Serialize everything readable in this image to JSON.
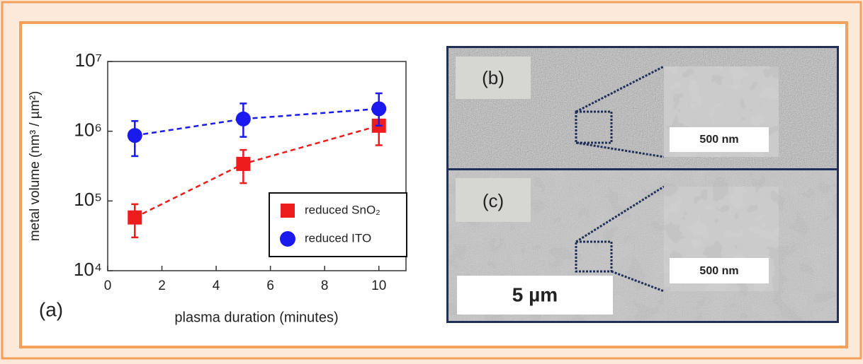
{
  "chart_data": {
    "type": "scatter",
    "panel_label": "(a)",
    "x_label": "plasma duration (minutes)",
    "y_label": "metal volume (nm³ / µm²)",
    "xlim": [
      0,
      11
    ],
    "xticks": [
      0,
      2,
      4,
      6,
      8,
      10
    ],
    "ylim": [
      10000,
      10000000
    ],
    "yticks": [
      {
        "value": 10000,
        "label": "10⁴"
      },
      {
        "value": 100000,
        "label": "10⁵"
      },
      {
        "value": 1000000,
        "label": "10⁶"
      },
      {
        "value": 10000000,
        "label": "10⁷"
      }
    ],
    "log_y": true,
    "grid": false,
    "legend": "lower right",
    "series": [
      {
        "name": "reduced SnO₂",
        "color": "#ee1c1c",
        "marker": "square",
        "dashed": true,
        "x": [
          1,
          5,
          10
        ],
        "values": [
          58000,
          340000,
          1200000
        ],
        "lower": [
          30000,
          180000,
          630000
        ],
        "upper": [
          90000,
          540000,
          1900000
        ]
      },
      {
        "name": "reduced ITO",
        "color": "#1a1aee",
        "marker": "circle",
        "dashed": true,
        "x": [
          1,
          5,
          10
        ],
        "values": [
          870000,
          1500000,
          2100000
        ],
        "lower": [
          440000,
          830000,
          1200000
        ],
        "upper": [
          1400000,
          2500000,
          3500000
        ]
      }
    ]
  },
  "images": {
    "panel_b": {
      "label": "(b)",
      "inset_scale": "500 nm"
    },
    "panel_c": {
      "label": "(c)",
      "inset_scale": "500 nm",
      "scale_bar": "5 µm"
    }
  }
}
